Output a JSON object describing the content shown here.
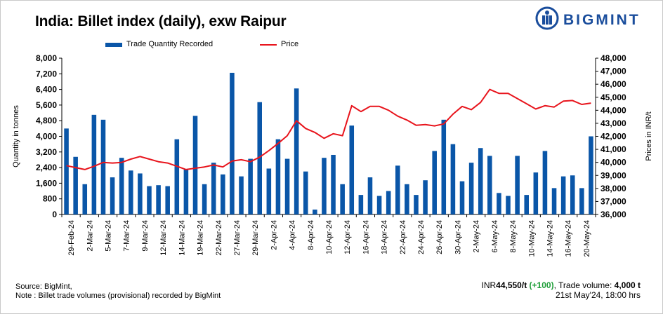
{
  "header": {
    "title": "India: Billet index (daily), exw Raipur"
  },
  "brand": {
    "name": "BIGMINT",
    "color": "#1a4d9c"
  },
  "legend": {
    "bar_label": "Trade Quantity Recorded",
    "line_label": "Price"
  },
  "footer": {
    "source": "Source: BigMint,",
    "note": "Note : Billet trade volumes (provisional) recorded by BigMint",
    "price_prefix": "INR",
    "price_value": "44,550/t",
    "price_change": "(+100)",
    "volume_text": ", Trade volume:",
    "volume_value": "4,000 t",
    "timestamp": "21st May'24, 18:00 hrs"
  },
  "colors": {
    "bar": "#0a56a8",
    "line": "#e8141c",
    "positive": "#1f9e39"
  },
  "chart_data": {
    "type": "bar",
    "title": "India: Billet index (daily), exw Raipur",
    "ylabel": "Quantity in tonnes",
    "y2label": "Prices in INR/t",
    "ylim": [
      0,
      8000
    ],
    "yticks": [
      0,
      800,
      1600,
      2400,
      3200,
      4000,
      4800,
      5600,
      6400,
      7200,
      8000
    ],
    "ytick_labels": [
      "0",
      "800",
      "1,600",
      "2,400",
      "3,200",
      "4,000",
      "4,800",
      "5,600",
      "6,400",
      "7,200",
      "8,000"
    ],
    "y2lim": [
      36000,
      48000
    ],
    "y2ticks": [
      36000,
      37000,
      38000,
      39000,
      40000,
      41000,
      42000,
      43000,
      44000,
      45000,
      46000,
      47000,
      48000
    ],
    "y2tick_labels": [
      "36,000",
      "37,000",
      "38,000",
      "39,000",
      "40,000",
      "41,000",
      "42,000",
      "43,000",
      "44,000",
      "45,000",
      "46,000",
      "47,000",
      "48,000"
    ],
    "x_labels": [
      "29-Feb-24",
      "2-Mar-24",
      "5-Mar-24",
      "7-Mar-24",
      "9-Mar-24",
      "12-Mar-24",
      "14-Mar-24",
      "19-Mar-24",
      "22-Mar-24",
      "27-Mar-24",
      "29-Mar-24",
      "2-Apr-24",
      "4-Apr-24",
      "8-Apr-24",
      "10-Apr-24",
      "12-Apr-24",
      "16-Apr-24",
      "18-Apr-24",
      "22-Apr-24",
      "24-Apr-24",
      "26-Apr-24",
      "30-Apr-24",
      "2-May-24",
      "6-May-24",
      "8-May-24",
      "10-May-24",
      "14-May-24",
      "16-May-24",
      "20-May-24"
    ],
    "series": [
      {
        "name": "Trade Quantity Recorded",
        "type": "bar",
        "values": [
          4400,
          2950,
          1550,
          5100,
          4850,
          1900,
          2900,
          2250,
          2100,
          1450,
          1500,
          1450,
          3850,
          2300,
          5050,
          1550,
          2650,
          2050,
          7250,
          1950,
          2850,
          5750,
          2350,
          3850,
          2850,
          6450,
          2200,
          250,
          2900,
          3050,
          1550,
          4550,
          1000,
          1900,
          950,
          1200,
          2500,
          1550,
          1000,
          1750,
          3250,
          4850,
          3600,
          1700,
          2650,
          3400,
          3000,
          1100,
          950,
          3000,
          1000,
          2150,
          3250,
          1350,
          1950,
          2000,
          1350,
          4000
        ]
      },
      {
        "name": "Price",
        "type": "line",
        "values": [
          39750,
          39600,
          39450,
          39700,
          40000,
          39950,
          40000,
          40250,
          40450,
          40250,
          40050,
          39950,
          39700,
          39450,
          39550,
          39650,
          39800,
          39650,
          40100,
          40200,
          40050,
          40400,
          40900,
          41450,
          42050,
          43200,
          42600,
          42300,
          41850,
          42200,
          42050,
          44350,
          43900,
          44300,
          44300,
          44000,
          43550,
          43250,
          42850,
          42900,
          42800,
          42950,
          43700,
          44300,
          44050,
          44600,
          45600,
          45300,
          45300,
          44900,
          44500,
          44100,
          44350,
          44250,
          44700,
          44750,
          44450,
          44550
        ]
      }
    ]
  }
}
